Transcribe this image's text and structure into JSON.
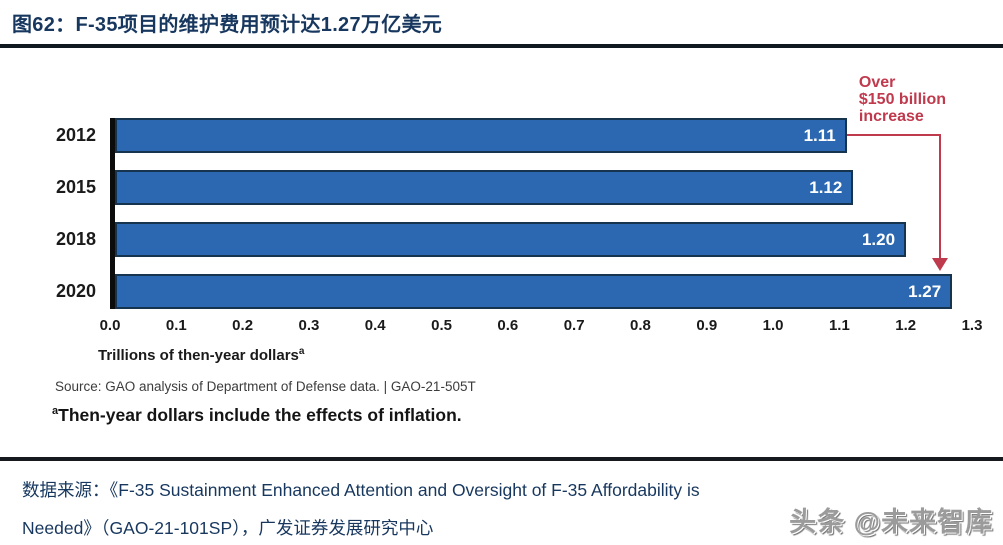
{
  "page": {
    "title": "图62：F-35项目的维护费用预计达1.27万亿美元",
    "watermark": "头条 @未来智库"
  },
  "chart_data": {
    "type": "bar",
    "orientation": "horizontal",
    "categories": [
      "2012",
      "2015",
      "2018",
      "2020"
    ],
    "values": [
      1.11,
      1.12,
      1.2,
      1.27
    ],
    "value_labels": [
      "1.11",
      "1.12",
      "1.20",
      "1.27"
    ],
    "xlabel": "Trillions of then-year dollars",
    "xlabel_superscript": "a",
    "xlim": [
      0,
      1.3
    ],
    "x_ticks": [
      "0.0",
      "0.1",
      "0.2",
      "0.3",
      "0.4",
      "0.5",
      "0.6",
      "0.7",
      "0.8",
      "0.9",
      "1.0",
      "1.1",
      "1.2",
      "1.3"
    ],
    "grid": false,
    "bar_color": "#2c68b1",
    "bar_border_color": "#17344f",
    "annotation": {
      "lines": [
        "Over",
        "$150 billion",
        "increase"
      ],
      "color": "#c03a4e",
      "arrow_x_fraction": 0.963,
      "arrow_from_category": "2012",
      "arrow_to_category": "2020"
    },
    "source": "Source: GAO analysis of Department of Defense data.  |  GAO-21-505T",
    "footnote_superscript": "a",
    "footnote": "Then-year dollars include the effects of inflation."
  },
  "caption": {
    "line1": "数据来源：《F-35 Sustainment Enhanced Attention and Oversight of F-35 Affordability is",
    "line2": "Needed》（GAO-21-101SP），广发证券发展研究中心"
  }
}
